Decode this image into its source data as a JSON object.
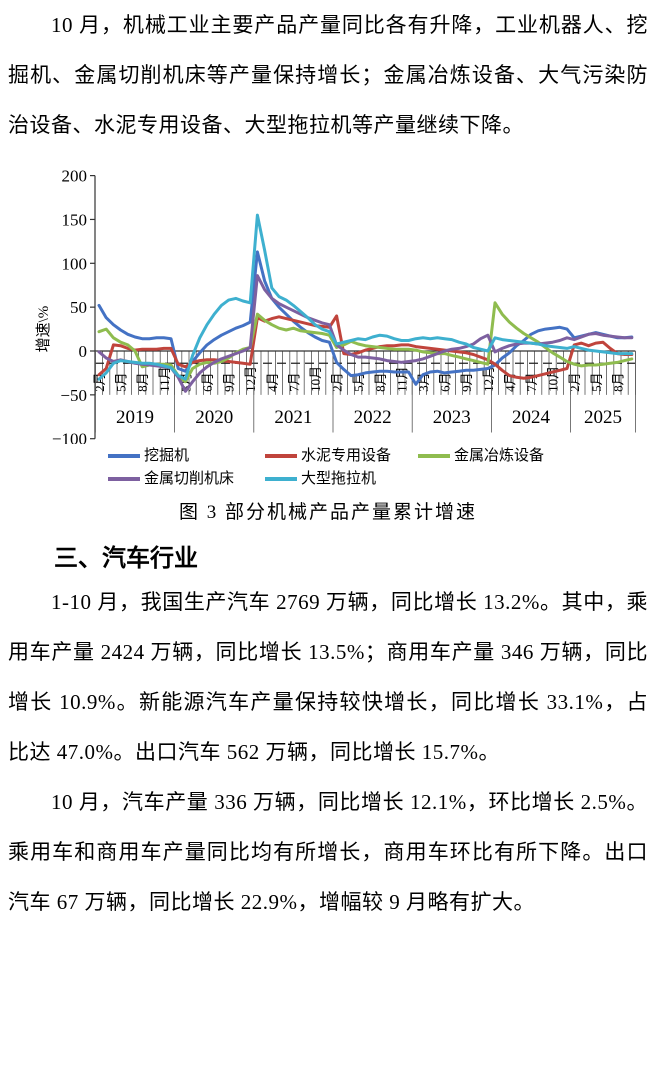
{
  "doc": {
    "para1": "10 月，机械工业主要产品产量同比各有升降，工业机器人、挖掘机、金属切削机床等产量保持增长；金属冶炼设备、大气污染防治设备、水泥专用设备、大型拖拉机等产量继续下降。",
    "figure_caption": "图 3  部分机械产品产量累计增速",
    "heading": "三、汽车行业",
    "para2": "1-10 月，我国生产汽车 2769 万辆，同比增长 13.2%。其中，乘用车产量 2424 万辆，同比增长 13.5%；商用车产量 346 万辆，同比增长 10.9%。新能源汽车产量保持较快增长，同比增长 33.1%，占比达 47.0%。出口汽车 562 万辆，同比增长 15.7%。",
    "para3": "10 月，汽车产量 336 万辆，同比增长 12.1%，环比增长 2.5%。乘用车和商用车产量同比均有所增长，商用车环比有所下降。出口汽车 67 万辆，同比增长 22.9%，增幅较 9 月略有扩大。"
  },
  "chart_data": {
    "type": "line",
    "title": "图 3 部分机械产品产量累计增速",
    "xlabel": "",
    "ylabel": "增速\\%",
    "ylim": [
      -100,
      200
    ],
    "y_ticks": [
      200,
      150,
      100,
      50,
      0,
      -50,
      -100
    ],
    "grid": false,
    "legend_position": "bottom",
    "x_unit": "月度累计(每年自2月起)",
    "month_pattern": [
      "2月",
      "3月",
      "4月",
      "5月",
      "6月",
      "7月",
      "8月",
      "9月",
      "10月",
      "11月",
      "12月"
    ],
    "label_every": 3,
    "years": [
      {
        "label": "2019",
        "months": 11
      },
      {
        "label": "2020",
        "months": 11
      },
      {
        "label": "2021",
        "months": 11
      },
      {
        "label": "2022",
        "months": 11
      },
      {
        "label": "2023",
        "months": 11
      },
      {
        "label": "2024",
        "months": 11
      },
      {
        "label": "2025",
        "months": 9
      }
    ],
    "series": [
      {
        "name": "挖掘机",
        "color": "#4472C4",
        "values": [
          52,
          38,
          30,
          24,
          19,
          16,
          14,
          14,
          15,
          15,
          14,
          -20,
          -23,
          -12,
          -2,
          7,
          13,
          18,
          22,
          26,
          29,
          33,
          113,
          80,
          60,
          50,
          42,
          34,
          27,
          21,
          16,
          12,
          10,
          -13,
          -21,
          -28,
          -27,
          -25,
          -24,
          -23,
          -23,
          -24,
          -24,
          -24,
          -38,
          -27,
          -24,
          -23,
          -25,
          -24,
          -23,
          -22,
          -22,
          -21,
          -20,
          -16,
          -8,
          -2,
          6,
          12,
          19,
          23,
          25,
          26,
          27,
          25,
          15,
          17,
          19,
          21,
          19,
          17,
          15,
          15,
          16
        ]
      },
      {
        "name": "水泥专用设备",
        "color": "#C0443C",
        "values": [
          -27,
          -20,
          7,
          6,
          3,
          1,
          2,
          2,
          2,
          3,
          3,
          -15,
          -18,
          -13,
          -11,
          -10,
          -10,
          -11,
          -12,
          -13,
          -14,
          -15,
          38,
          34,
          37,
          39,
          37,
          35,
          33,
          31,
          29,
          28,
          27,
          40,
          -3,
          -4,
          -2,
          1,
          3,
          5,
          6,
          6,
          7,
          7,
          5,
          4,
          3,
          2,
          1,
          0,
          -1,
          -2,
          -4,
          -7,
          -10,
          -15,
          -22,
          -28,
          -30,
          -31,
          -30,
          -28,
          -26,
          -24,
          -22,
          -20,
          7,
          9,
          6,
          9,
          10,
          3,
          -3,
          -4,
          -4
        ]
      },
      {
        "name": "金属冶炼设备",
        "color": "#8FBC4F",
        "values": [
          22,
          25,
          15,
          10,
          7,
          0,
          -18,
          -16,
          -15,
          -15,
          -16,
          -28,
          -35,
          -20,
          -15,
          -13,
          -14,
          -12,
          -8,
          -2,
          2,
          4,
          42,
          35,
          30,
          26,
          24,
          26,
          23,
          22,
          21,
          20,
          18,
          4,
          7,
          11,
          8,
          6,
          5,
          4,
          3,
          2,
          2,
          2,
          1,
          -1,
          -2,
          -3,
          -3,
          -5,
          -7,
          -9,
          -11,
          -13,
          -15,
          55,
          42,
          33,
          26,
          20,
          15,
          10,
          4,
          -2,
          -7,
          -12,
          -15,
          -17,
          -16,
          -16,
          -15,
          -14,
          -13,
          -11,
          -9
        ]
      },
      {
        "name": "金属切削机床",
        "color": "#7D60A0",
        "values": [
          -1,
          -8,
          -12,
          -10,
          -12,
          -14,
          -15,
          -16,
          -17,
          -18,
          -19,
          -30,
          -46,
          -35,
          -25,
          -18,
          -13,
          -9,
          -6,
          -3,
          0,
          4,
          86,
          70,
          60,
          54,
          50,
          46,
          42,
          38,
          35,
          32,
          30,
          7,
          1,
          -4,
          -7,
          -7,
          -8,
          -9,
          -11,
          -12,
          -13,
          -12,
          -11,
          -9,
          -6,
          -3,
          0,
          2,
          3,
          5,
          8,
          14,
          18,
          -1,
          3,
          6,
          8,
          9,
          9,
          8,
          9,
          10,
          12,
          15,
          13,
          16,
          19,
          20,
          18,
          17,
          16,
          15,
          15
        ]
      },
      {
        "name": "大型拖拉机",
        "color": "#3EB0CF",
        "values": [
          -32,
          -25,
          -14,
          -11,
          -12,
          -13,
          -14,
          -14,
          -15,
          -17,
          -19,
          -28,
          -32,
          -5,
          15,
          30,
          42,
          52,
          58,
          60,
          57,
          55,
          155,
          115,
          72,
          62,
          58,
          52,
          45,
          38,
          30,
          25,
          22,
          8,
          10,
          12,
          14,
          13,
          16,
          18,
          17,
          14,
          12,
          12,
          14,
          15,
          14,
          15,
          14,
          13,
          10,
          8,
          4,
          2,
          0,
          15,
          13,
          12,
          11,
          10,
          9,
          8,
          6,
          5,
          4,
          3,
          5,
          3,
          1,
          0,
          -1,
          -2,
          -3,
          -3,
          -3
        ]
      }
    ]
  }
}
